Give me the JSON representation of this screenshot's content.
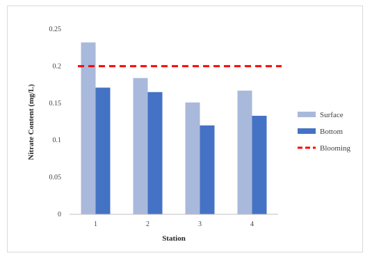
{
  "chart_data": {
    "type": "bar",
    "categories": [
      "1",
      "2",
      "3",
      "4"
    ],
    "series": [
      {
        "name": "Surface",
        "values": [
          0.232,
          0.184,
          0.151,
          0.167
        ],
        "color": "#a9b9dc"
      },
      {
        "name": "Bottom",
        "values": [
          0.171,
          0.165,
          0.12,
          0.133
        ],
        "color": "#4472c4"
      }
    ],
    "reference_line": {
      "name": "Blooming",
      "value": 0.2,
      "color": "#ff0000",
      "style": "dashed"
    },
    "title": "",
    "xlabel": "Station",
    "ylabel": "Nitrate Content (mg/L)",
    "ylim": [
      0,
      0.25
    ],
    "yticks": [
      "0",
      "0.05",
      "0.1",
      "0.15",
      "0.2",
      "0.25"
    ],
    "grid": false,
    "legend_position": "right"
  }
}
